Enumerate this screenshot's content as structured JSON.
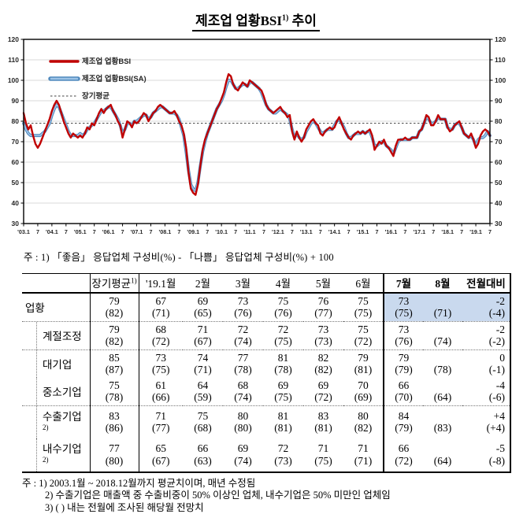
{
  "title": {
    "text": "제조업 업황BSI",
    "sup": "1)",
    "suffix": " 추이"
  },
  "chart": {
    "legend": [
      {
        "label": "제조업 업황BSI",
        "color": "#c00000",
        "style": "solid"
      },
      {
        "label": "제조업 업황BSI(SA)",
        "color": "#9dc3e6",
        "edge": "#4f89bd",
        "style": "thick"
      },
      {
        "label": "장기평균",
        "color": "#404040",
        "style": "dotted"
      }
    ],
    "note": "주 : 1) 「좋음」 응답업체 구성비(%) - 「나쁨」 응답업체 구성비(%) + 100"
  },
  "chart_data": {
    "type": "line",
    "title": "제조업 업황BSI1) 추이",
    "x_start": "2003.1",
    "x_end": "2019.7",
    "x_unit": "month",
    "ylim": [
      30,
      120
    ],
    "ytick_interval": 10,
    "grid": "horizontal",
    "legend_position": "top-left-inside",
    "long_term_average": 79,
    "x_tick_labels": [
      "'03.1",
      "7",
      "'04.1",
      "7",
      "'05.1",
      "7",
      "'06.1",
      "7",
      "'07.1",
      "7",
      "'08.1",
      "7",
      "'09.1",
      "7",
      "'10.1",
      "7",
      "'11.1",
      "7",
      "'12.1",
      "7",
      "'13.1",
      "7",
      "'14.1",
      "7",
      "'15.1",
      "7",
      "'16.1",
      "7",
      "'17.1",
      "7",
      "'18.1",
      "7",
      "'19.1",
      "7"
    ],
    "x_tick_month_step": 6,
    "series": [
      {
        "name": "제조업 업황BSI",
        "color": "#c00000",
        "values": [
          84,
          79,
          76,
          78,
          73,
          69,
          67,
          69,
          72,
          75,
          78,
          81,
          85,
          88,
          90,
          88,
          84,
          80,
          77,
          74,
          72,
          74,
          73,
          72,
          73,
          72,
          74,
          77,
          76,
          79,
          78,
          81,
          84,
          86,
          84,
          86,
          87,
          88,
          85,
          83,
          80,
          78,
          72,
          76,
          80,
          79,
          77,
          80,
          79,
          80,
          82,
          84,
          83,
          80,
          82,
          84,
          85,
          87,
          88,
          87,
          86,
          85,
          84,
          84,
          85,
          83,
          80,
          78,
          74,
          67,
          55,
          47,
          45,
          44,
          49,
          58,
          66,
          71,
          74,
          77,
          80,
          83,
          86,
          88,
          91,
          94,
          99,
          103,
          102,
          98,
          96,
          95,
          97,
          99,
          98,
          97,
          100,
          99,
          98,
          97,
          96,
          95,
          92,
          88,
          86,
          85,
          84,
          85,
          86,
          87,
          85,
          84,
          82,
          83,
          75,
          71,
          75,
          72,
          70,
          72,
          76,
          78,
          80,
          81,
          79,
          78,
          74,
          73,
          75,
          76,
          77,
          76,
          77,
          80,
          82,
          79,
          76,
          74,
          72,
          71,
          73,
          74,
          75,
          74,
          75,
          74,
          75,
          76,
          73,
          66,
          68,
          70,
          69,
          71,
          68,
          67,
          65,
          63,
          68,
          71,
          71,
          71,
          72,
          71,
          71,
          72,
          72,
          72,
          75,
          76,
          79,
          83,
          82,
          78,
          78,
          80,
          83,
          81,
          81,
          81,
          77,
          75,
          76,
          78,
          79,
          80,
          77,
          74,
          73,
          72,
          74,
          71,
          67,
          69,
          73,
          75,
          76,
          75,
          73
        ]
      },
      {
        "name": "제조업 업황BSI(SA)",
        "color": "#9dc3e6",
        "edge_color": "#4f89bd",
        "values": [
          79,
          76,
          74,
          73,
          73,
          73,
          73,
          73,
          74,
          75,
          77,
          79,
          83,
          86,
          88,
          87,
          84,
          81,
          78,
          75,
          73,
          73,
          73,
          73,
          74,
          73,
          74,
          76,
          77,
          78,
          79,
          81,
          83,
          85,
          85,
          86,
          87,
          87,
          85,
          83,
          81,
          78,
          74,
          76,
          79,
          79,
          78,
          80,
          80,
          81,
          82,
          83,
          83,
          81,
          82,
          84,
          85,
          86,
          87,
          87,
          86,
          85,
          84,
          84,
          84,
          83,
          81,
          77,
          73,
          65,
          56,
          49,
          47,
          46,
          50,
          58,
          65,
          70,
          74,
          77,
          80,
          83,
          86,
          88,
          90,
          93,
          97,
          100,
          100,
          98,
          96,
          96,
          97,
          98,
          98,
          97,
          99,
          99,
          98,
          97,
          96,
          94,
          91,
          88,
          86,
          85,
          84,
          84,
          85,
          86,
          85,
          84,
          83,
          81,
          76,
          72,
          74,
          72,
          71,
          72,
          75,
          77,
          79,
          80,
          79,
          77,
          75,
          74,
          75,
          76,
          76,
          76,
          78,
          80,
          81,
          79,
          77,
          74,
          72,
          72,
          73,
          74,
          74,
          74,
          75,
          74,
          75,
          75,
          72,
          68,
          68,
          69,
          70,
          70,
          68,
          67,
          66,
          64,
          67,
          70,
          71,
          71,
          71,
          71,
          71,
          72,
          72,
          72,
          75,
          76,
          79,
          82,
          81,
          79,
          79,
          80,
          82,
          81,
          81,
          81,
          77,
          76,
          76,
          78,
          79,
          79,
          77,
          74,
          73,
          72,
          73,
          71,
          68,
          71,
          72,
          72,
          73,
          75,
          73
        ]
      },
      {
        "name": "장기평균",
        "color": "#404040",
        "constant": 79
      }
    ]
  },
  "table": {
    "highlight_color": "#c9d9ee",
    "columns": [
      {
        "label": "",
        "sup": ""
      },
      {
        "label": "장기평균",
        "sup": "1)"
      },
      {
        "label": "'19.1월",
        "sup": ""
      },
      {
        "label": "2월",
        "sup": ""
      },
      {
        "label": "3월",
        "sup": ""
      },
      {
        "label": "4월",
        "sup": ""
      },
      {
        "label": "5월",
        "sup": ""
      },
      {
        "label": "6월",
        "sup": ""
      },
      {
        "label": "7월",
        "sup": "",
        "bold": true
      },
      {
        "label": "8월",
        "sup": "",
        "bold": true
      },
      {
        "label": "전월대비",
        "sup": "",
        "bold": true
      }
    ],
    "rows": [
      {
        "label": "업황",
        "sup": "",
        "indent": false,
        "justify": true,
        "group_start": false,
        "highlight": true,
        "cells": [
          [
            "79",
            "(82)"
          ],
          [
            "67",
            "(71)"
          ],
          [
            "69",
            "(65)"
          ],
          [
            "73",
            "(76)"
          ],
          [
            "75",
            "(76)"
          ],
          [
            "76",
            "(77)"
          ],
          [
            "75",
            "(75)"
          ],
          [
            "73",
            "(75)"
          ],
          [
            "",
            "(71)"
          ],
          [
            "-2",
            "(-4)"
          ]
        ]
      },
      {
        "label": "계절조정",
        "sup": "",
        "indent": true,
        "justify": true,
        "group_start": true,
        "highlight": false,
        "cells": [
          [
            "79",
            "(82)"
          ],
          [
            "68",
            "(72)"
          ],
          [
            "71",
            "(67)"
          ],
          [
            "72",
            "(74)"
          ],
          [
            "72",
            "(75)"
          ],
          [
            "73",
            "(73)"
          ],
          [
            "75",
            "(72)"
          ],
          [
            "73",
            "(76)"
          ],
          [
            "",
            "(74)"
          ],
          [
            "-2",
            "(-2)"
          ]
        ]
      },
      {
        "label": "대기업",
        "sup": "",
        "indent": true,
        "justify": true,
        "group_start": true,
        "highlight": false,
        "cells": [
          [
            "85",
            "(87)"
          ],
          [
            "73",
            "(75)"
          ],
          [
            "74",
            "(71)"
          ],
          [
            "77",
            "(78)"
          ],
          [
            "81",
            "(78)"
          ],
          [
            "82",
            "(82)"
          ],
          [
            "79",
            "(81)"
          ],
          [
            "79",
            "(79)"
          ],
          [
            "",
            "(78)"
          ],
          [
            "0",
            "(-1)"
          ]
        ]
      },
      {
        "label": "중소기업",
        "sup": "",
        "indent": true,
        "justify": true,
        "group_start": false,
        "highlight": false,
        "cells": [
          [
            "75",
            "(78)"
          ],
          [
            "61",
            "(66)"
          ],
          [
            "64",
            "(59)"
          ],
          [
            "68",
            "(74)"
          ],
          [
            "69",
            "(75)"
          ],
          [
            "69",
            "(72)"
          ],
          [
            "70",
            "(69)"
          ],
          [
            "66",
            "(70)"
          ],
          [
            "",
            "(64)"
          ],
          [
            "-4",
            "(-6)"
          ]
        ]
      },
      {
        "label": "수출기업",
        "sup": "2)",
        "indent": true,
        "justify": false,
        "group_start": true,
        "highlight": false,
        "cells": [
          [
            "83",
            "(86)"
          ],
          [
            "71",
            "(77)"
          ],
          [
            "75",
            "(68)"
          ],
          [
            "80",
            "(80)"
          ],
          [
            "81",
            "(81)"
          ],
          [
            "83",
            "(81)"
          ],
          [
            "80",
            "(82)"
          ],
          [
            "84",
            "(79)"
          ],
          [
            "",
            "(83)"
          ],
          [
            "+4",
            "(+4)"
          ]
        ]
      },
      {
        "label": "내수기업",
        "sup": "2)",
        "indent": true,
        "justify": false,
        "group_start": false,
        "highlight": false,
        "cells": [
          [
            "77",
            "(80)"
          ],
          [
            "65",
            "(67)"
          ],
          [
            "66",
            "(63)"
          ],
          [
            "69",
            "(74)"
          ],
          [
            "72",
            "(73)"
          ],
          [
            "71",
            "(75)"
          ],
          [
            "71",
            "(71)"
          ],
          [
            "66",
            "(72)"
          ],
          [
            "",
            "(64)"
          ],
          [
            "-5",
            "(-8)"
          ]
        ]
      }
    ]
  },
  "footnotes": [
    "주 : 1) 2003.1월 ~ 2018.12월까지 평균치이며, 매년 수정됨",
    "2) 수출기업은 매출액 중 수출비중이 50% 이상인 업체, 내수기업은 50% 미만인 업체임",
    "3) (  ) 내는 전월에 조사된 해당월 전망치"
  ]
}
